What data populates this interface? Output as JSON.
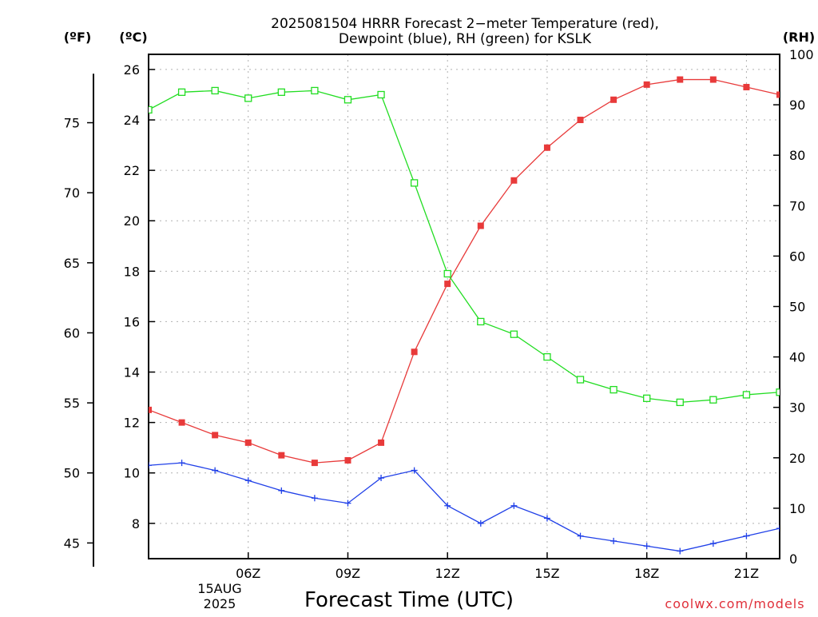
{
  "chart_data": {
    "type": "line",
    "title_line1": "2025081504 HRRR Forecast 2−meter Temperature (red),",
    "title_line2": "Dewpoint (blue), RH (green) for KSLK",
    "xlabel": "Forecast Time (UTC)",
    "date_label_line1": "15AUG",
    "date_label_line2": "2025",
    "credit": "coolwx.com/models",
    "unit_f": "(ºF)",
    "unit_c": "(ºC)",
    "unit_rh": "(RH)",
    "x_hours": [
      3,
      4,
      5,
      6,
      7,
      8,
      9,
      10,
      11,
      12,
      13,
      14,
      15,
      16,
      17,
      18,
      19,
      20,
      21,
      22
    ],
    "xlim": [
      3,
      22
    ],
    "x_ticks": [
      {
        "hour": 6,
        "label": "06Z"
      },
      {
        "hour": 9,
        "label": "09Z"
      },
      {
        "hour": 12,
        "label": "12Z"
      },
      {
        "hour": 15,
        "label": "15Z"
      },
      {
        "hour": 18,
        "label": "18Z"
      },
      {
        "hour": 21,
        "label": "21Z"
      }
    ],
    "celsius_axis": {
      "ylim": [
        6.6,
        26.6
      ],
      "ticks": [
        8,
        10,
        12,
        14,
        16,
        18,
        20,
        22,
        24,
        26
      ]
    },
    "fahrenheit_axis": {
      "ticks": [
        45,
        50,
        55,
        60,
        65,
        70,
        75
      ]
    },
    "rh_axis": {
      "ylim": [
        0,
        100
      ],
      "ticks": [
        0,
        10,
        20,
        30,
        40,
        50,
        60,
        70,
        80,
        90,
        100
      ]
    },
    "grid": true,
    "colors": {
      "temperature": "#e83a3a",
      "dewpoint": "#2040e8",
      "rh": "#22dd22",
      "axis": "#000000",
      "grid": "#b0b0b0",
      "credit": "#e0303a"
    },
    "series": [
      {
        "name": "Temperature",
        "axis": "celsius",
        "marker": "filled-square",
        "values": [
          12.5,
          12.0,
          11.5,
          11.2,
          10.7,
          10.4,
          10.5,
          11.2,
          14.8,
          17.5,
          19.8,
          21.6,
          22.9,
          24.0,
          24.8,
          25.4,
          25.6,
          25.6,
          25.3,
          25.0
        ]
      },
      {
        "name": "Dewpoint",
        "axis": "celsius",
        "marker": "plus",
        "values": [
          10.3,
          10.4,
          10.1,
          9.7,
          9.3,
          9.0,
          8.8,
          9.8,
          10.1,
          8.7,
          8.0,
          8.7,
          8.2,
          7.5,
          7.3,
          7.1,
          6.9,
          7.2,
          7.5,
          7.8
        ]
      },
      {
        "name": "RH",
        "axis": "rh",
        "marker": "open-square",
        "values": [
          89,
          92.5,
          92.8,
          91.3,
          92.5,
          92.8,
          91,
          92,
          74.5,
          56.5,
          47,
          44.5,
          40,
          35.5,
          33.5,
          31.8,
          31,
          31.5,
          32.5,
          33
        ]
      }
    ]
  }
}
